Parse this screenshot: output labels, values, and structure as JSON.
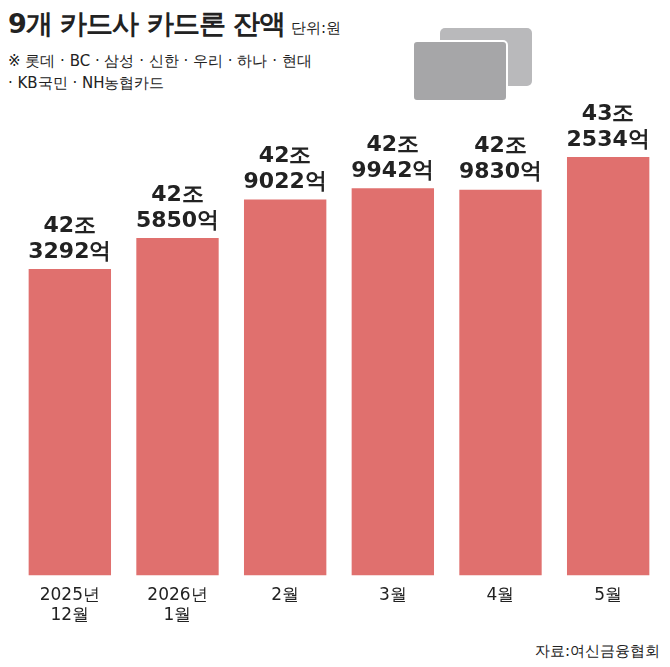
{
  "chart_data": {
    "type": "bar",
    "title": "9개 카드사 카드론 잔액",
    "subtitle": "단위:원",
    "note": "※ 롯데 · BC · 삼성 · 신한 · 우리 · 하나 · 현대 · KB국민 · NH농협카드",
    "source": "자료:여신금융협회",
    "categories": [
      "2025년 12월",
      "2026년 1월",
      "2월",
      "3월",
      "4월",
      "5월"
    ],
    "values": [
      42329200000000,
      42585000000000,
      42902200000000,
      42994200000000,
      42983000000000,
      43253400000000
    ],
    "value_labels": [
      "42조 3292억",
      "42조 5850억",
      "42조 9022억",
      "42조 9942억",
      "42조 9830억",
      "43조 2534억"
    ],
    "color": "#e0706e",
    "ylim": [
      39800000000000,
      43600000000000
    ],
    "grid": false,
    "data_labels": true,
    "tick_labels": "x"
  }
}
